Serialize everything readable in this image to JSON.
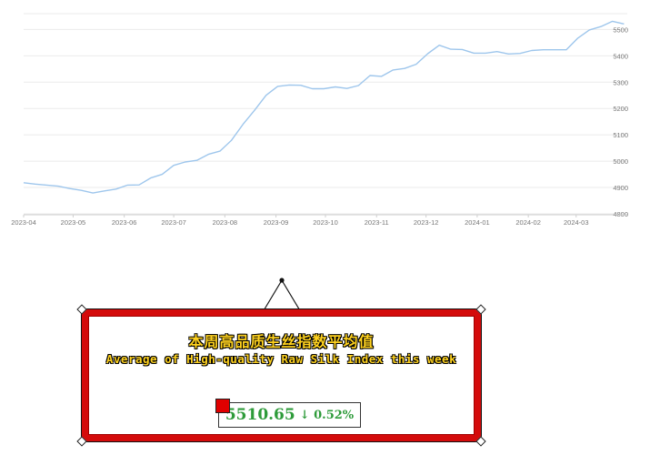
{
  "chart_data": {
    "type": "line",
    "x": [
      "2023-04-01",
      "2023-04-08",
      "2023-04-15",
      "2023-04-22",
      "2023-04-29",
      "2023-05-06",
      "2023-05-13",
      "2023-05-20",
      "2023-05-27",
      "2023-06-03",
      "2023-06-10",
      "2023-06-17",
      "2023-06-24",
      "2023-07-01",
      "2023-07-08",
      "2023-07-15",
      "2023-07-22",
      "2023-07-29",
      "2023-08-05",
      "2023-08-12",
      "2023-08-19",
      "2023-08-26",
      "2023-09-02",
      "2023-09-09",
      "2023-09-16",
      "2023-09-23",
      "2023-09-30",
      "2023-10-07",
      "2023-10-14",
      "2023-10-21",
      "2023-10-28",
      "2023-11-04",
      "2023-11-11",
      "2023-11-18",
      "2023-11-25",
      "2023-12-02",
      "2023-12-09",
      "2023-12-16",
      "2023-12-23",
      "2023-12-30",
      "2024-01-06",
      "2024-01-13",
      "2024-01-20",
      "2024-01-27",
      "2024-02-03",
      "2024-02-10",
      "2024-02-17",
      "2024-02-24",
      "2024-03-02",
      "2024-03-09",
      "2024-03-16",
      "2024-03-23",
      "2024-03-30"
    ],
    "series": [
      {
        "values": [
          4918,
          4913,
          4909,
          4905,
          4896,
          4889,
          4879,
          4887,
          4894,
          4909,
          4910,
          4936,
          4950,
          4984,
          4997,
          5003,
          5026,
          5038,
          5079,
          5140,
          5193,
          5250,
          5284,
          5289,
          5288,
          5275,
          5275,
          5282,
          5276,
          5287,
          5325,
          5322,
          5346,
          5352,
          5368,
          5408,
          5440,
          5425,
          5424,
          5410,
          5410,
          5416,
          5407,
          5409,
          5420,
          5423,
          5423,
          5423,
          5467,
          5498,
          5511,
          5531,
          5521
        ],
        "color": "#9ec6ec"
      }
    ],
    "x_ticks": [
      "2023-04",
      "2023-05",
      "2023-06",
      "2023-07",
      "2023-08",
      "2023-09",
      "2023-10",
      "2023-11",
      "2023-12",
      "2024-01",
      "2024-02",
      "2024-03"
    ],
    "y_ticks": [
      4800,
      4900,
      5000,
      5100,
      5200,
      5300,
      5400,
      5500
    ],
    "ylim": [
      4800,
      5560
    ],
    "grid": true,
    "legend": "none"
  },
  "sign": {
    "title_cn": "本周高品质生丝指数平均值",
    "title_en": "Average of High-quality Raw Silk Index this week",
    "value": "5510.65",
    "change": "↓ 0.52%",
    "frame_color": "#d40b0b",
    "title_color": "#ffd21f",
    "value_color": "#2e9b3a"
  }
}
